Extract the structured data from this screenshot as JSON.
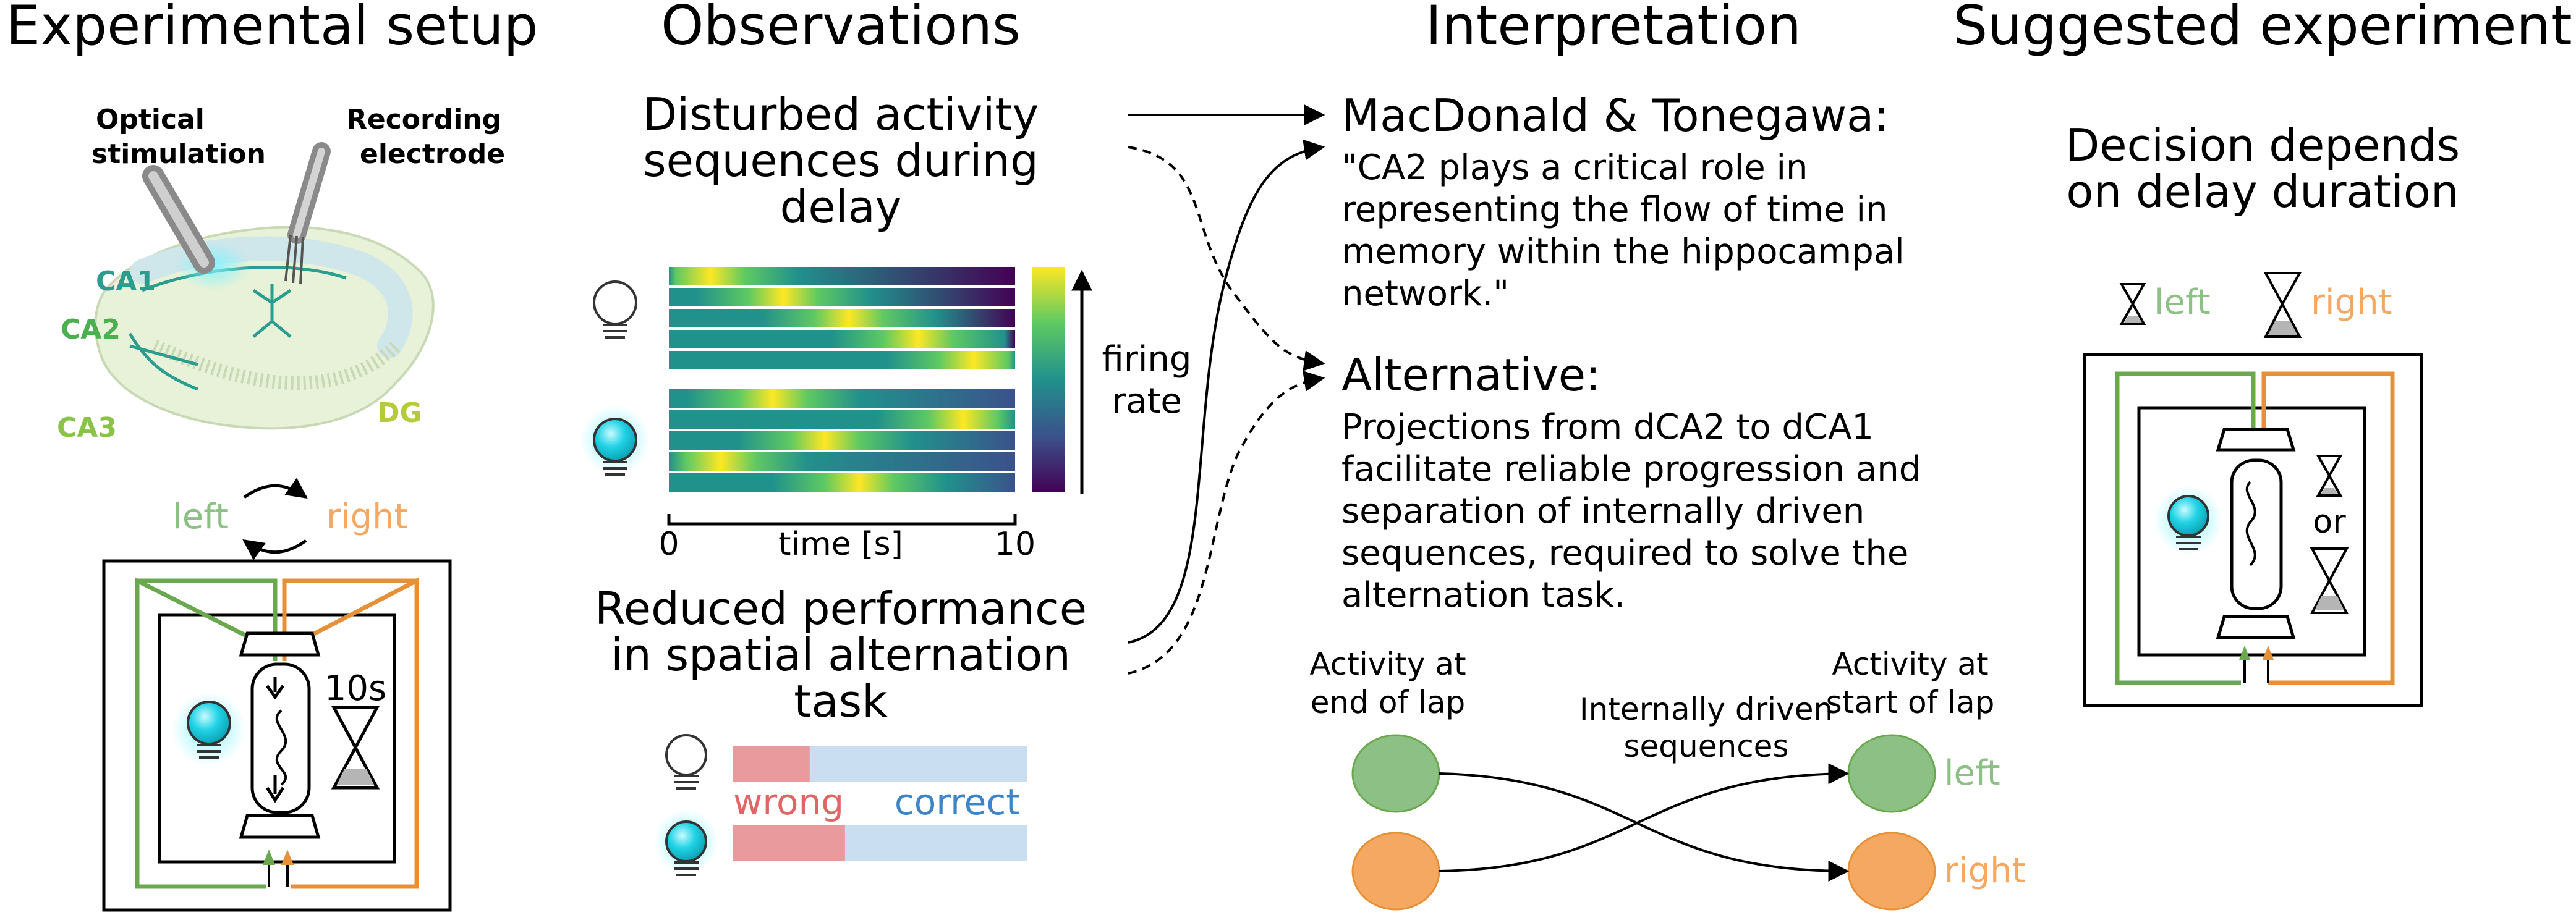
{
  "sections": {
    "setup": "Experimental setup",
    "observations": "Observations",
    "interpretation": "Interpretation",
    "suggested": "Suggested experiment"
  },
  "setup": {
    "optical": [
      "Optical",
      "stimulation"
    ],
    "recording": [
      "Recording",
      "electrode"
    ],
    "ca1": "CA1",
    "ca2": "CA2",
    "ca3": "CA3",
    "dg": "DG",
    "left": "left",
    "right": "right",
    "delay": "10s"
  },
  "observations": {
    "disturbed": [
      "Disturbed activity",
      "sequences during",
      "delay"
    ],
    "firing": [
      "firing",
      "rate"
    ],
    "axis_label": "time [s]",
    "tick_start": "0",
    "tick_end": "10",
    "reduced": [
      "Reduced performance",
      "in spatial alternation",
      "task"
    ],
    "wrong": "wrong",
    "correct": "correct",
    "wrong_fraction_control": 0.26,
    "wrong_fraction_stim": 0.38
  },
  "interpretation": {
    "mac_title": "MacDonald & Tonegawa:",
    "mac_text": [
      "\"CA2 plays a critical role in",
      "representing the flow of time in",
      "memory within the hippocampal",
      "network.\""
    ],
    "alt_title": "Alternative:",
    "alt_text": [
      "Projections from dCA2 to dCA1",
      "facilitate reliable progression and",
      "separation of internally driven",
      "sequences, required to solve the",
      "alternation task."
    ],
    "end_lap": [
      "Activity at",
      "end of lap"
    ],
    "internal": [
      "Internally driven",
      "sequences"
    ],
    "start_lap": [
      "Activity at",
      "start of lap"
    ],
    "left": "left",
    "right": "right"
  },
  "suggested": {
    "decision": [
      "Decision depends",
      "on delay duration"
    ],
    "left": "left",
    "right": "right",
    "or": "or"
  },
  "colors": {
    "green": "#8cc084",
    "orange": "#f4a862",
    "green_line": "#6aa84f",
    "orange_line": "#e69138",
    "teal": "#2a9d8f",
    "wrong": "#e89a9c",
    "correct": "#c9def1",
    "wrong_text": "#e06666",
    "correct_text": "#3d85c6",
    "cyan": "#22d3e6"
  }
}
